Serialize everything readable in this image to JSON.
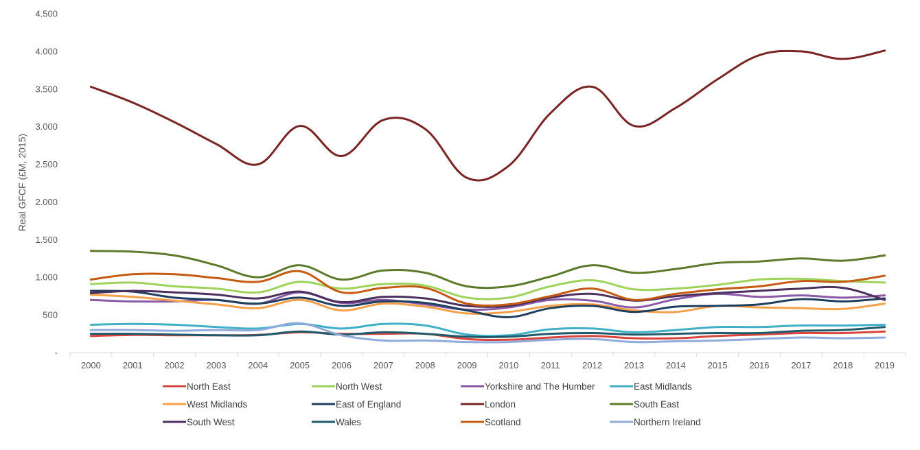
{
  "chart_data": {
    "type": "line",
    "title": "",
    "xlabel": "",
    "ylabel": "Real GFCF (£M, 2015)",
    "ylim": [
      0,
      4500
    ],
    "yticks": [
      {
        "value": 0,
        "label": "-"
      },
      {
        "value": 500,
        "label": "500"
      },
      {
        "value": 1000,
        "label": "1.000"
      },
      {
        "value": 1500,
        "label": "1.500"
      },
      {
        "value": 2000,
        "label": "2.000"
      },
      {
        "value": 2500,
        "label": "2.500"
      },
      {
        "value": 3000,
        "label": "3.000"
      },
      {
        "value": 3500,
        "label": "3.500"
      },
      {
        "value": 4000,
        "label": "4.000"
      },
      {
        "value": 4500,
        "label": "4.500"
      }
    ],
    "categories": [
      "2000",
      "2001",
      "2002",
      "2003",
      "2004",
      "2005",
      "2006",
      "2007",
      "2008",
      "2009",
      "2010",
      "2011",
      "2012",
      "2013",
      "2014",
      "2015",
      "2016",
      "2017",
      "2018",
      "2019"
    ],
    "grid": false,
    "legend_position": "bottom",
    "series": [
      {
        "name": "North East",
        "color": "#d9453d",
        "values": [
          220,
          235,
          230,
          230,
          235,
          270,
          250,
          250,
          250,
          180,
          170,
          200,
          220,
          190,
          190,
          220,
          240,
          260,
          260,
          280
        ]
      },
      {
        "name": "North West",
        "color": "#9ed35a",
        "values": [
          910,
          930,
          880,
          850,
          800,
          940,
          850,
          910,
          890,
          730,
          730,
          880,
          960,
          840,
          850,
          900,
          970,
          980,
          950,
          930
        ]
      },
      {
        "name": "Yorkshire and The Humber",
        "color": "#8a5aa8",
        "values": [
          700,
          680,
          680,
          700,
          650,
          800,
          660,
          700,
          640,
          570,
          600,
          700,
          690,
          600,
          710,
          780,
          740,
          760,
          730,
          760
        ]
      },
      {
        "name": "East Midlands",
        "color": "#3fb0c6",
        "values": [
          370,
          380,
          370,
          340,
          320,
          380,
          320,
          380,
          360,
          240,
          230,
          310,
          320,
          270,
          300,
          340,
          340,
          360,
          360,
          370
        ]
      },
      {
        "name": "West Midlands",
        "color": "#f4a04a",
        "values": [
          770,
          740,
          690,
          640,
          590,
          700,
          560,
          650,
          610,
          520,
          540,
          620,
          640,
          560,
          540,
          620,
          600,
          590,
          580,
          650
        ]
      },
      {
        "name": "East of England",
        "color": "#1f3f5f",
        "values": [
          820,
          810,
          730,
          700,
          650,
          730,
          620,
          680,
          660,
          560,
          470,
          590,
          620,
          540,
          610,
          620,
          640,
          710,
          680,
          720
        ]
      },
      {
        "name": "London",
        "color": "#7a2424",
        "values": [
          3530,
          3320,
          3060,
          2770,
          2500,
          3010,
          2610,
          3090,
          2970,
          2320,
          2480,
          3180,
          3530,
          3010,
          3250,
          3630,
          3950,
          4000,
          3900,
          4010
        ]
      },
      {
        "name": "South East",
        "color": "#5c7a2a",
        "values": [
          1350,
          1340,
          1290,
          1160,
          1000,
          1160,
          970,
          1090,
          1060,
          880,
          880,
          1010,
          1160,
          1060,
          1110,
          1190,
          1210,
          1250,
          1220,
          1290
        ]
      },
      {
        "name": "South West",
        "color": "#4a2f5f",
        "values": [
          790,
          820,
          800,
          770,
          720,
          810,
          670,
          740,
          720,
          620,
          620,
          730,
          780,
          690,
          750,
          790,
          820,
          850,
          860,
          700
        ]
      },
      {
        "name": "Wales",
        "color": "#1f5a6b",
        "values": [
          250,
          250,
          240,
          230,
          230,
          280,
          240,
          270,
          250,
          210,
          210,
          250,
          260,
          240,
          250,
          260,
          260,
          290,
          300,
          340
        ]
      },
      {
        "name": "Scotland",
        "color": "#c55a11",
        "values": [
          970,
          1040,
          1040,
          990,
          940,
          1080,
          800,
          860,
          860,
          650,
          640,
          750,
          850,
          700,
          780,
          840,
          880,
          950,
          940,
          1020
        ]
      },
      {
        "name": "Northern Ireland",
        "color": "#8faadc",
        "values": [
          300,
          300,
          290,
          300,
          300,
          390,
          230,
          160,
          160,
          140,
          140,
          170,
          180,
          140,
          150,
          160,
          180,
          200,
          190,
          200
        ]
      }
    ]
  }
}
